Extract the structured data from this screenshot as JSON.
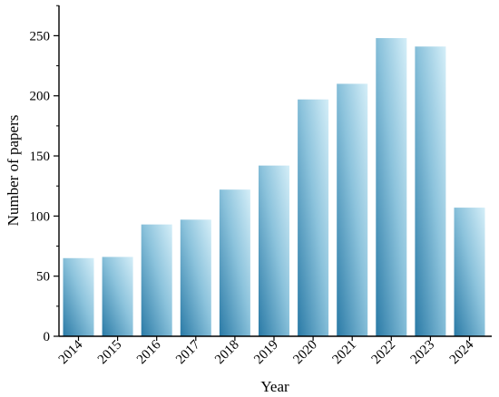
{
  "chart_data": {
    "type": "bar",
    "title": "",
    "xlabel": "Year",
    "ylabel": "Number of papers",
    "categories": [
      "2014",
      "2015",
      "2016",
      "2017",
      "2018",
      "2019",
      "2020",
      "2021",
      "2022",
      "2023",
      "2024"
    ],
    "values": [
      65,
      66,
      93,
      97,
      122,
      142,
      197,
      210,
      248,
      241,
      107
    ],
    "ylim": [
      0,
      275
    ],
    "yticks": [
      0,
      50,
      100,
      150,
      200,
      250
    ],
    "grid": false,
    "legend": "none",
    "colors": {
      "bar_top": "#d4eef8",
      "bar_mid": "#8cc3dc",
      "bar_bottom": "#2a7aa6",
      "axis": "#000000"
    }
  }
}
